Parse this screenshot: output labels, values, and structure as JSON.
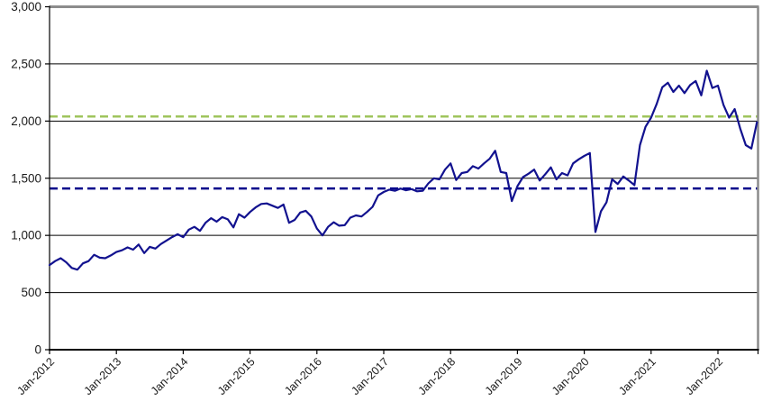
{
  "chart_data": {
    "type": "line",
    "title": "",
    "xlabel": "",
    "ylabel": "",
    "ylim": [
      0,
      3000
    ],
    "grid": "horizontal",
    "legend": "none",
    "y_tick_values": [
      3000,
      2500,
      2000,
      1500,
      1000,
      500,
      0
    ],
    "y_tick_labels": [
      "3,000",
      "2,500",
      "2,000",
      "1,500",
      "1,000",
      "500",
      "0"
    ],
    "gridline_values": [
      500,
      1000,
      1500,
      2000,
      2500
    ],
    "x_tick_labels": [
      "Jan-2012",
      "Jan-2013",
      "Jan-2014",
      "Jan-2015",
      "Jan-2016",
      "Jan-2017",
      "Jan-2018",
      "Jan-2019",
      "Jan-2020",
      "Jan-2021",
      "Jan-2022"
    ],
    "series": [
      {
        "name": "index-level",
        "start": "Jan-2012",
        "frequency": "monthly",
        "color": "#12128F",
        "values": [
          740,
          775,
          800,
          765,
          715,
          700,
          755,
          775,
          830,
          805,
          800,
          825,
          855,
          870,
          895,
          875,
          920,
          845,
          900,
          885,
          925,
          955,
          985,
          1010,
          985,
          1050,
          1075,
          1040,
          1110,
          1150,
          1120,
          1160,
          1140,
          1070,
          1185,
          1155,
          1205,
          1245,
          1275,
          1280,
          1260,
          1240,
          1270,
          1110,
          1135,
          1200,
          1215,
          1165,
          1060,
          1000,
          1075,
          1115,
          1085,
          1090,
          1155,
          1175,
          1165,
          1205,
          1250,
          1350,
          1380,
          1400,
          1390,
          1410,
          1395,
          1405,
          1385,
          1390,
          1455,
          1500,
          1490,
          1575,
          1630,
          1485,
          1545,
          1555,
          1605,
          1585,
          1630,
          1670,
          1740,
          1555,
          1545,
          1300,
          1430,
          1510,
          1540,
          1575,
          1480,
          1535,
          1595,
          1490,
          1545,
          1525,
          1630,
          1665,
          1695,
          1720,
          1030,
          1210,
          1290,
          1490,
          1450,
          1515,
          1480,
          1440,
          1790,
          1950,
          2030,
          2150,
          2295,
          2335,
          2255,
          2310,
          2245,
          2315,
          2350,
          2225,
          2440,
          2290,
          2310,
          2140,
          2030,
          2105,
          1935,
          1790,
          1760,
          1990
        ]
      }
    ],
    "reference_lines": [
      {
        "name": "navy-dashed-reference",
        "value": 1410,
        "color": "#00008B",
        "style": "dashed"
      },
      {
        "name": "green-dashed-reference",
        "value": 2040,
        "color": "#9FC45C",
        "style": "dashed"
      }
    ],
    "colors": {
      "series": "#12128F",
      "gridline": "#000000",
      "axis": "#000000",
      "border_gray": "#8C8C8C",
      "text": "#1A1A1A"
    }
  }
}
